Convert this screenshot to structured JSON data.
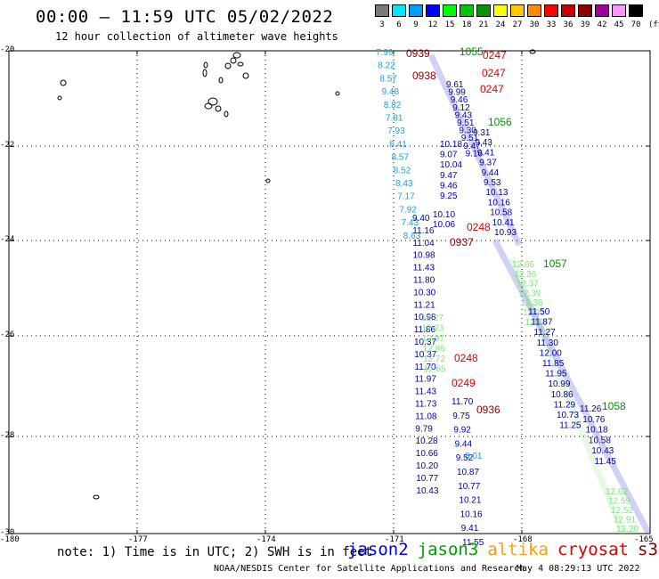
{
  "header": {
    "title": "00:00 – 11:59 UTC 05/02/2022",
    "subtitle": "12 hour collection of altimeter wave heights"
  },
  "scale": {
    "unit": "(ft)",
    "labels": [
      "3",
      "6",
      "9",
      "12",
      "15",
      "18",
      "21",
      "24",
      "27",
      "30",
      "33",
      "36",
      "39",
      "42",
      "45",
      "70"
    ],
    "colors": [
      "#7a7a7a",
      "#00e8ff",
      "#00a0ff",
      "#0000ff",
      "#00ff00",
      "#00c800",
      "#009600",
      "#ffff00",
      "#ffc800",
      "#ff8c00",
      "#ff0000",
      "#c80000",
      "#8c0000",
      "#a000a0",
      "#ff96ff",
      "#000000"
    ]
  },
  "axes": {
    "lat_labels": [
      "-20",
      "-22",
      "-24",
      "-26",
      "-28",
      "-30"
    ],
    "lon_labels": [
      "-180",
      "-177",
      "-174",
      "-171",
      "-168",
      "-165"
    ]
  },
  "satellites": [
    {
      "name": "jason2",
      "color": "#0000ee"
    },
    {
      "name": "jason3",
      "color": "#00a000"
    },
    {
      "name": "altika",
      "color": "#ffa000"
    },
    {
      "name": "cryosat",
      "color": "#e00000"
    },
    {
      "name": "s3a",
      "color": "#8b0000"
    }
  ],
  "track_colors": {
    "light": "#1aa3dd",
    "blue": "#0000aa",
    "green": "#7de87d",
    "dkgreen": "#009600",
    "red": "#dd0000",
    "dkred": "#8b0000"
  },
  "tracks": [
    {
      "color": "light",
      "values": [
        "7.99",
        "8.22",
        "8.57",
        "9.48",
        "8.82",
        "7.81",
        "7.93",
        "8.41",
        "8.57",
        "8.52",
        "8.43",
        "7.17",
        "7.92",
        "7.43",
        "8.63"
      ]
    },
    {
      "color": "blue",
      "values": [
        "9.40",
        "11.16",
        "11.04",
        "10.98",
        "11.43",
        "11.80",
        "10.30",
        "11.21",
        "10.98",
        "11.86",
        "10.37",
        "10.37",
        "11.70",
        "11.97",
        "11.43",
        "11.73",
        "11.08",
        "9.79",
        "10.28",
        "10.66",
        "10.20",
        "10.77",
        "10.43"
      ]
    },
    {
      "color": "blue",
      "values": [
        "10.10",
        "10.06"
      ]
    },
    {
      "color": "green",
      "values": [
        "12.27",
        "12.23",
        "12.97",
        "12.86",
        "12.72",
        "12.65"
      ]
    },
    {
      "color": "blue",
      "values": [
        "10.18",
        "9.07",
        "10.04",
        "9.47",
        "9.46",
        "9.25"
      ]
    },
    {
      "color": "blue",
      "values": [
        "11.70",
        "9.75",
        "9.92",
        "9.44",
        "9.52",
        "10.87",
        "10.77",
        "10.21",
        "10.16",
        "9.41",
        "11.55"
      ]
    },
    {
      "color": "light",
      "values": [
        "8.01"
      ]
    },
    {
      "color": "blue",
      "values": [
        "9.31",
        "9.43",
        "9.41",
        "9.37",
        "9.44",
        "9.53",
        "10.13",
        "10.16",
        "10.58",
        "10.41",
        "10.93"
      ]
    },
    {
      "color": "blue",
      "values": [
        "9.61",
        "9.99",
        "9.46",
        "9.12",
        "9.43",
        "9.51",
        "9.30",
        "9.51",
        "9.47",
        "9.16"
      ]
    },
    {
      "color": "green",
      "values": [
        "12.86",
        "12.36",
        "12.37",
        "12.39",
        "12.36",
        "12.21",
        "12.76"
      ]
    },
    {
      "color": "blue",
      "values": [
        "11.50",
        "11.87",
        "11.27",
        "11.30",
        "12.00",
        "11.85",
        "11.95",
        "10.99",
        "10.86",
        "11.29",
        "10.73",
        "11.25"
      ]
    },
    {
      "color": "blue",
      "values": [
        "11.26",
        "10.76",
        "10.18",
        "10.58",
        "10.43",
        "11.45"
      ]
    },
    {
      "color": "green",
      "values": [
        "12.62",
        "12.59",
        "12.52",
        "12.91",
        "13.20"
      ]
    }
  ],
  "pass_labels": [
    {
      "text": "0939",
      "color": "dkred"
    },
    {
      "text": "0938",
      "color": "dkred"
    },
    {
      "text": "0937",
      "color": "dkred"
    },
    {
      "text": "0936",
      "color": "dkred"
    },
    {
      "text": "1055",
      "color": "dkgreen"
    },
    {
      "text": "1056",
      "color": "dkgreen"
    },
    {
      "text": "1057",
      "color": "dkgreen"
    },
    {
      "text": "1058",
      "color": "dkgreen"
    },
    {
      "text": "0247",
      "color": "red"
    },
    {
      "text": "0247",
      "color": "red"
    },
    {
      "text": "0247",
      "color": "red"
    },
    {
      "text": "0248",
      "color": "red"
    },
    {
      "text": "0248",
      "color": "red"
    },
    {
      "text": "0249",
      "color": "red"
    }
  ],
  "note": "note: 1) Time is in UTC; 2) SWH is in feet",
  "credit": "NOAA/NESDIS Center for Satellite Applications and Research",
  "generated": "May  4 08:29:13 UTC 2022"
}
